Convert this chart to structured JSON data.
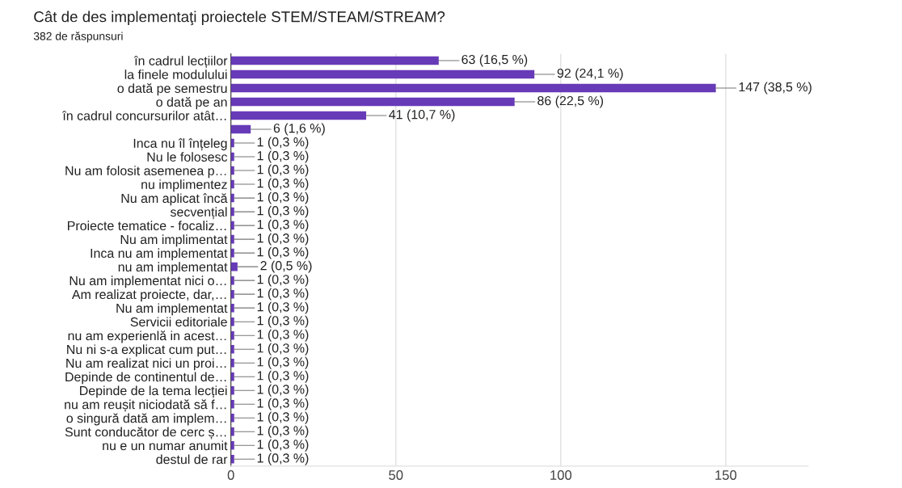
{
  "chart_data": {
    "type": "bar",
    "orientation": "horizontal",
    "title": "Cât de des implementaţi proiectele STEM/STEAM/STREAM?",
    "subtitle": "382 de răspunsuri",
    "categories": [
      "în cadrul lecțiilor",
      "la finele modulului",
      "o dată pe semestru",
      "o dată pe an",
      "în cadrul concursurilor atât…",
      null,
      "Inca nu îl înțeleg",
      "Nu le folosesc",
      "Nu am folosit asemenea p…",
      "nu implimentez",
      "Nu am aplicat încă",
      "secvențial",
      "Proiecte tematice - focaliz…",
      "Nu am implimentat",
      "Inca nu am implementat",
      "nu am implementat",
      "Nu am implementat nici o…",
      "Am realizat proiecte, dar,…",
      "Nu am implementat",
      "Servicii editoriale",
      "nu am experienlă in acest…",
      "Nu ni s-a explicat cum put…",
      "Nu am realizat nici un proi…",
      "Depinde de continentul de…",
      "Depinde de la tema lecției",
      "nu am reușit niciodată să f…",
      "o singură dată am implem…",
      "Sunt conducător de cerc ș…",
      "nu e un numar anumit",
      "destul de rar"
    ],
    "values": [
      63,
      92,
      147,
      86,
      41,
      6,
      1,
      1,
      1,
      1,
      1,
      1,
      1,
      1,
      1,
      2,
      1,
      1,
      1,
      1,
      1,
      1,
      1,
      1,
      1,
      1,
      1,
      1,
      1,
      1
    ],
    "value_labels": [
      "63 (16,5 %)",
      "92 (24,1 %)",
      "147 (38,5 %)",
      "86 (22,5 %)",
      "41 (10,7 %)",
      "6 (1,6 %)",
      "1 (0,3 %)",
      "1 (0,3 %)",
      "1 (0,3 %)",
      "1 (0,3 %)",
      "1 (0,3 %)",
      "1 (0,3 %)",
      "1 (0,3 %)",
      "1 (0,3 %)",
      "1 (0,3 %)",
      "2 (0,5 %)",
      "1 (0,3 %)",
      "1 (0,3 %)",
      "1 (0,3 %)",
      "1 (0,3 %)",
      "1 (0,3 %)",
      "1 (0,3 %)",
      "1 (0,3 %)",
      "1 (0,3 %)",
      "1 (0,3 %)",
      "1 (0,3 %)",
      "1 (0,3 %)",
      "1 (0,3 %)",
      "1 (0,3 %)",
      "1 (0,3 %)"
    ],
    "color": "#673ab7",
    "xlim": [
      0,
      175
    ],
    "xticks": [
      0,
      50,
      100,
      150
    ],
    "grid": "x",
    "legend": false
  }
}
